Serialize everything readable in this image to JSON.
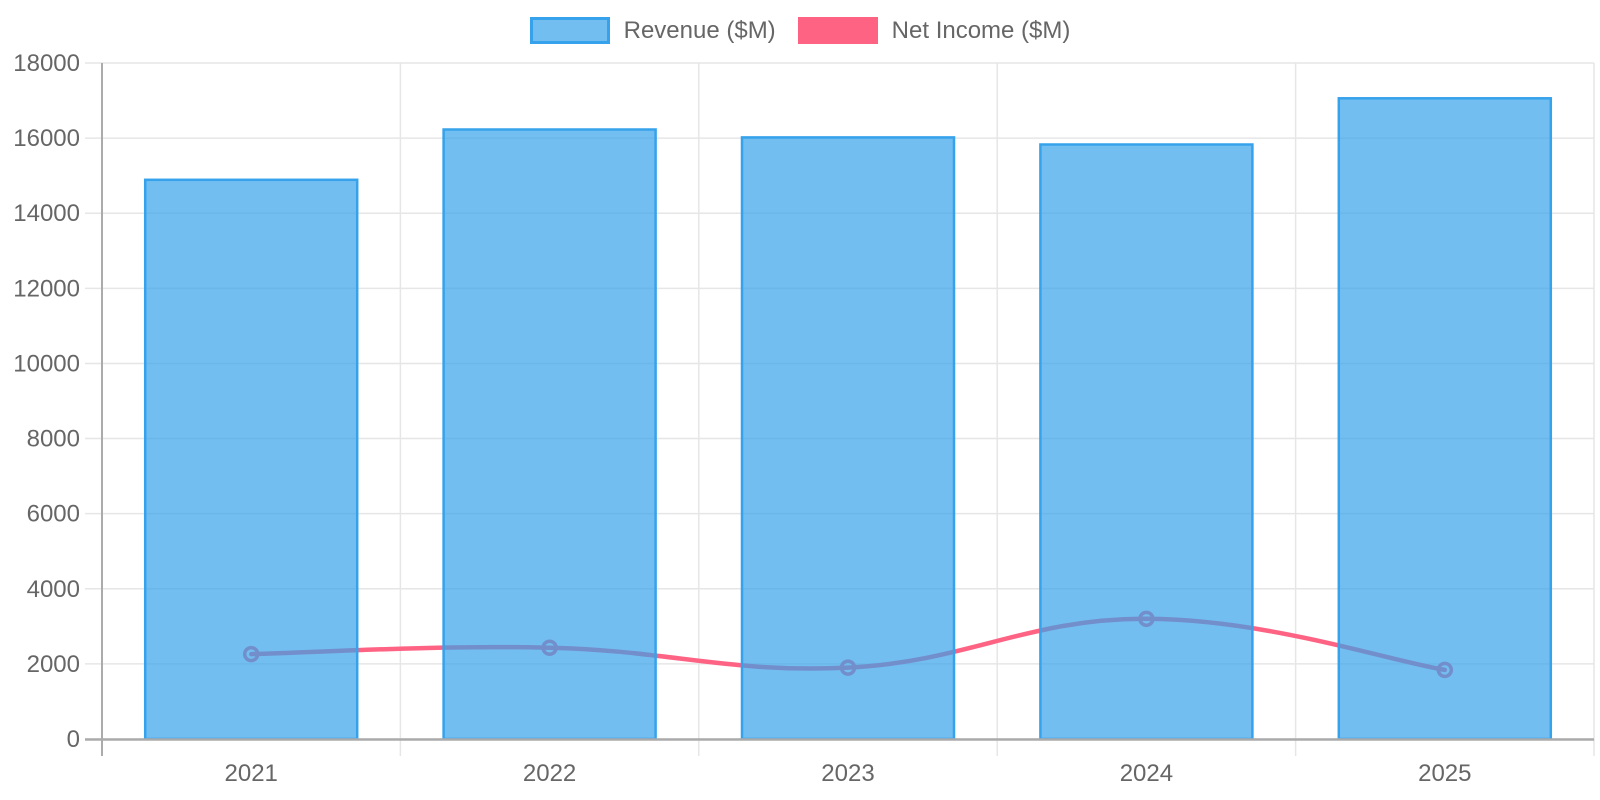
{
  "colors": {
    "bar_fill": "rgba(54,162,235,0.7)",
    "bar_border": "#36a2eb",
    "line": "#ff6384",
    "grid": "#e6e6e6",
    "axis": "#ababab",
    "tick_label": "#666666",
    "legend_text": "#666666",
    "background": "#ffffff"
  },
  "chart_data": {
    "type": "bar",
    "title": "",
    "xlabel": "",
    "ylabel": "",
    "categories": [
      "2021",
      "2022",
      "2023",
      "2024",
      "2025"
    ],
    "series": [
      {
        "name": "Revenue ($M)",
        "type": "bar",
        "values": [
          14890,
          16230,
          16020,
          15830,
          17060
        ],
        "fill": "rgba(54,162,235,0.7)",
        "stroke": "#36a2eb"
      },
      {
        "name": "Net Income ($M)",
        "type": "line",
        "values": [
          2260,
          2430,
          1900,
          3200,
          1840
        ],
        "stroke": "#ff6384",
        "point_style": "hollow-circle"
      }
    ],
    "ylim": [
      0,
      18000
    ],
    "yticks": [
      0,
      2000,
      4000,
      6000,
      8000,
      10000,
      12000,
      14000,
      16000,
      18000
    ],
    "grid": true,
    "legend_position": "top"
  }
}
